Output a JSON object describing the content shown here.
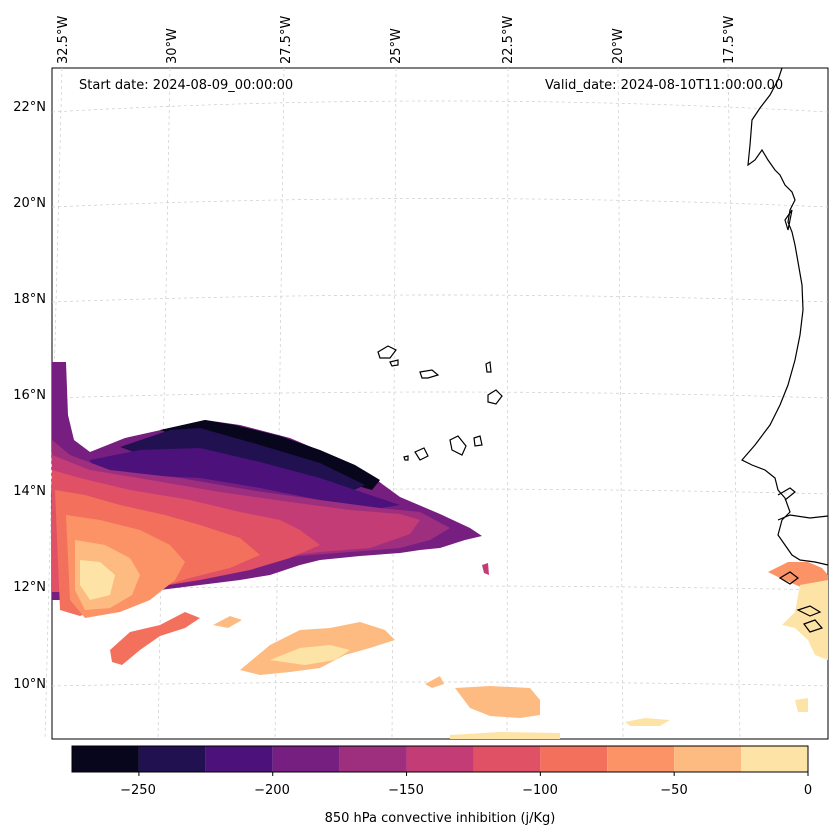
{
  "map": {
    "start_label": "Start date: 2024-08-09_00:00:00",
    "valid_label": "Valid_date: 2024-08-10T11:00:00.00",
    "lon_labels": [
      "32.5°W",
      "30°W",
      "27.5°W",
      "25°W",
      "22.5°W",
      "20°W",
      "17.5°W"
    ],
    "lat_labels": [
      "22°N",
      "20°N",
      "18°N",
      "16°N",
      "14°N",
      "12°N",
      "10°N"
    ]
  },
  "colorbar": {
    "label": "850 hPa convective inhibition (j/Kg)",
    "ticks": [
      "−250",
      "−200",
      "−150",
      "−100",
      "−50",
      "0"
    ],
    "levels": [
      -275,
      -250,
      -225,
      -200,
      -175,
      -150,
      -125,
      -100,
      -75,
      -50,
      -25,
      0
    ],
    "colors": [
      "#07061c",
      "#221150",
      "#4d117b",
      "#761f81",
      "#9e2f7f",
      "#c43c75",
      "#e05165",
      "#f3705c",
      "#fc9366",
      "#febb81",
      "#fde4a6"
    ]
  }
}
